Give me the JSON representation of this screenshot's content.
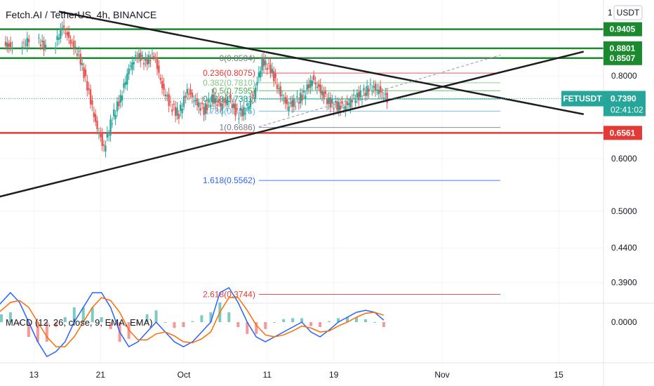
{
  "header": {
    "title": "Fetch.AI / TetherUS, 4h, BINANCE",
    "currency_badge": "USDT"
  },
  "colors": {
    "up": "#26a69a",
    "down": "#ef5350",
    "resistance": "#1b8a2f",
    "support": "#e53935",
    "trendline": "#1e1e1e",
    "price_badge": "#26a69a"
  },
  "chart_data": {
    "type": "candlestick",
    "symbol": "FETUSDT",
    "interval": "4h",
    "exchange": "BINANCE",
    "y_scale": "log",
    "y_ticks": [
      {
        "value": 0.8,
        "label": "0.8000"
      },
      {
        "value": 0.6,
        "label": "0.6000"
      },
      {
        "value": 0.5,
        "label": "0.5000"
      },
      {
        "value": 0.44,
        "label": "0.4400"
      },
      {
        "value": 0.39,
        "label": "0.3900"
      }
    ],
    "x_ticks": [
      {
        "date": "2021-09-13",
        "label": "13"
      },
      {
        "date": "2021-09-21",
        "label": "21"
      },
      {
        "date": "2021-10-01",
        "label": "Oct"
      },
      {
        "date": "2021-10-11",
        "label": "11"
      },
      {
        "date": "2021-10-19",
        "label": "19"
      },
      {
        "date": "2021-11-01",
        "label": "Nov"
      },
      {
        "date": "2021-11-15",
        "label": "15"
      }
    ],
    "current_price": {
      "symbol": "FETUSDT",
      "value": "0.7390",
      "countdown": "02:41:02"
    },
    "horizontal_levels": [
      {
        "value": 0.9405,
        "label": "0.9405",
        "kind": "resistance"
      },
      {
        "value": 0.8801,
        "label": "0.8801",
        "kind": "resistance"
      },
      {
        "value": 0.8507,
        "label": "0.8507",
        "kind": "resistance"
      },
      {
        "value": 0.6561,
        "label": "0.6561",
        "kind": "support"
      }
    ],
    "fibonacci": {
      "start": "2021-10-10",
      "end": "2021-11-08",
      "levels": [
        {
          "ratio": "0",
          "value": 0.8504,
          "label": "0(0.8504)",
          "color": "#787b86"
        },
        {
          "ratio": "0.236",
          "value": 0.8075,
          "label": "0.236(0.8075)",
          "color": "#e53935"
        },
        {
          "ratio": "0.382",
          "value": 0.781,
          "label": "0.382(0.7810)",
          "color": "#81c784"
        },
        {
          "ratio": "0.5",
          "value": 0.7595,
          "label": "0.5(0.7595)",
          "color": "#4caf50"
        },
        {
          "ratio": "0.618",
          "value": 0.7381,
          "label": "0.618(0.7381)",
          "color": "#089981"
        },
        {
          "ratio": "0.786",
          "value": 0.7075,
          "label": "0.786(0.7075)",
          "color": "#64b5f6"
        },
        {
          "ratio": "1",
          "value": 0.6686,
          "label": "1(0.6686)",
          "color": "#787b86"
        },
        {
          "ratio": "1.618",
          "value": 0.5562,
          "label": "1.618(0.5562)",
          "color": "#2962ff"
        },
        {
          "ratio": "2.618",
          "value": 0.3744,
          "label": "2.618(0.3744)",
          "color": "#e53935"
        }
      ]
    },
    "trendlines": [
      {
        "from": {
          "date": "2021-09-16",
          "price": 1.0
        },
        "to": {
          "date": "2021-11-18",
          "price": 0.7
        },
        "style": "solid"
      },
      {
        "from": {
          "date": "2021-09-06",
          "price": 0.515
        },
        "to": {
          "date": "2021-11-18",
          "price": 0.87
        },
        "style": "solid"
      },
      {
        "from": {
          "date": "2021-10-10",
          "price": 0.67
        },
        "to": {
          "date": "2021-11-08",
          "price": 0.86
        },
        "style": "dashed"
      }
    ],
    "candles": [
      {
        "date": "2021-09-08",
        "close": 0.9
      },
      {
        "date": "2021-09-10",
        "close": 0.88
      },
      {
        "date": "2021-09-12",
        "close": 0.91
      },
      {
        "date": "2021-09-14",
        "close": 0.88
      },
      {
        "date": "2021-09-16",
        "close": 0.95
      },
      {
        "date": "2021-09-17",
        "close": 0.9
      },
      {
        "date": "2021-09-18",
        "close": 0.86
      },
      {
        "date": "2021-09-19",
        "close": 0.77
      },
      {
        "date": "2021-09-20",
        "close": 0.68
      },
      {
        "date": "2021-09-21",
        "close": 0.62
      },
      {
        "date": "2021-09-22",
        "close": 0.69
      },
      {
        "date": "2021-09-23",
        "close": 0.74
      },
      {
        "date": "2021-09-24",
        "close": 0.82
      },
      {
        "date": "2021-09-25",
        "close": 0.86
      },
      {
        "date": "2021-09-26",
        "close": 0.84
      },
      {
        "date": "2021-09-27",
        "close": 0.86
      },
      {
        "date": "2021-09-28",
        "close": 0.77
      },
      {
        "date": "2021-09-29",
        "close": 0.72
      },
      {
        "date": "2021-09-30",
        "close": 0.7
      },
      {
        "date": "2021-10-01",
        "close": 0.76
      },
      {
        "date": "2021-10-02",
        "close": 0.73
      },
      {
        "date": "2021-10-03",
        "close": 0.71
      },
      {
        "date": "2021-10-04",
        "close": 0.74
      },
      {
        "date": "2021-10-05",
        "close": 0.72
      },
      {
        "date": "2021-10-06",
        "close": 0.74
      },
      {
        "date": "2021-10-07",
        "close": 0.7
      },
      {
        "date": "2021-10-08",
        "close": 0.71
      },
      {
        "date": "2021-10-09",
        "close": 0.75
      },
      {
        "date": "2021-10-10",
        "close": 0.84
      },
      {
        "date": "2021-10-11",
        "close": 0.82
      },
      {
        "date": "2021-10-12",
        "close": 0.76
      },
      {
        "date": "2021-10-13",
        "close": 0.72
      },
      {
        "date": "2021-10-14",
        "close": 0.73
      },
      {
        "date": "2021-10-15",
        "close": 0.75
      },
      {
        "date": "2021-10-16",
        "close": 0.79
      },
      {
        "date": "2021-10-17",
        "close": 0.76
      },
      {
        "date": "2021-10-18",
        "close": 0.73
      },
      {
        "date": "2021-10-19",
        "close": 0.72
      },
      {
        "date": "2021-10-20",
        "close": 0.72
      },
      {
        "date": "2021-10-21",
        "close": 0.74
      },
      {
        "date": "2021-10-22",
        "close": 0.75
      },
      {
        "date": "2021-10-23",
        "close": 0.77
      },
      {
        "date": "2021-10-24",
        "close": 0.76
      },
      {
        "date": "2021-10-25",
        "close": 0.739
      }
    ],
    "macd": {
      "label": "MACD (12, 26, close, 9, EMA, EMA)",
      "fast": 12,
      "slow": 26,
      "source": "close",
      "signal": 9,
      "zero_label": "0.0000",
      "macd_line": [
        0.01,
        0.02,
        0.03,
        0.02,
        0.0,
        -0.02,
        -0.035,
        -0.03,
        -0.02,
        0.0,
        0.015,
        0.03,
        0.03,
        0.015,
        -0.01,
        -0.025,
        -0.02,
        -0.01,
        0.0,
        -0.01,
        -0.02,
        -0.025,
        -0.02,
        -0.01,
        0.0,
        0.03,
        0.035,
        0.02,
        0.0,
        -0.015,
        -0.02,
        -0.015,
        -0.01,
        -0.005,
        0.0,
        -0.01,
        -0.015,
        -0.008,
        0.0,
        0.005,
        0.01,
        0.012,
        0.01,
        0.002
      ],
      "signal_line": [
        0.005,
        0.012,
        0.02,
        0.022,
        0.015,
        0.0,
        -0.015,
        -0.025,
        -0.025,
        -0.015,
        0.0,
        0.015,
        0.025,
        0.022,
        0.01,
        -0.008,
        -0.018,
        -0.018,
        -0.012,
        -0.01,
        -0.014,
        -0.02,
        -0.021,
        -0.017,
        -0.01,
        0.01,
        0.025,
        0.025,
        0.012,
        -0.003,
        -0.013,
        -0.015,
        -0.013,
        -0.009,
        -0.004,
        -0.006,
        -0.01,
        -0.009,
        -0.004,
        0.0,
        0.005,
        0.009,
        0.01,
        0.007
      ]
    }
  }
}
